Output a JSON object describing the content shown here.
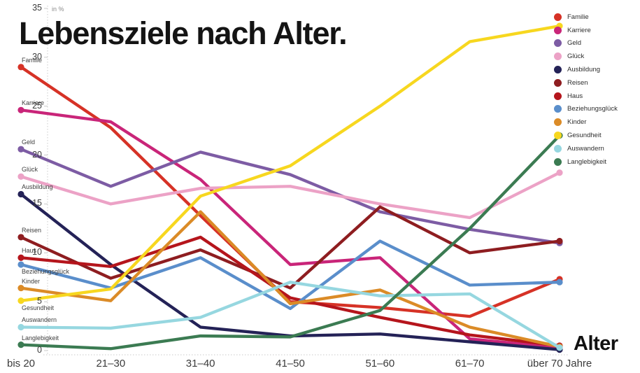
{
  "title": "Lebensziele nach Alter.",
  "axes": {
    "y_unit_label": "in %",
    "x_axis_title": "Alter"
  },
  "chart_data": {
    "type": "line",
    "title": "Lebensziele nach Alter.",
    "xlabel": "Alter",
    "ylabel": "in %",
    "ylim": [
      0,
      35
    ],
    "y_ticks": [
      0,
      5,
      10,
      15,
      20,
      25,
      30,
      35
    ],
    "grid": false,
    "legend_position": "top-right",
    "categories": [
      "bis 20",
      "21–30",
      "31–40",
      "41–50",
      "51–60",
      "61–70",
      "über 70 Jahre"
    ],
    "series": [
      {
        "name": "Familie",
        "color": "#d63226",
        "values": [
          29.0,
          22.8,
          13.8,
          5.0,
          4.4,
          3.5,
          7.3
        ]
      },
      {
        "name": "Karriere",
        "color": "#c92579",
        "values": [
          24.6,
          23.4,
          17.5,
          8.8,
          9.5,
          1.2,
          0.3
        ]
      },
      {
        "name": "Geld",
        "color": "#7d5ca4",
        "values": [
          20.6,
          16.8,
          20.3,
          18.0,
          14.2,
          12.4,
          11.0
        ]
      },
      {
        "name": "Glück",
        "color": "#eca2c6",
        "values": [
          17.8,
          15.0,
          16.6,
          16.8,
          15.0,
          13.6,
          18.2
        ]
      },
      {
        "name": "Ausbildung",
        "color": "#242257",
        "values": [
          16.0,
          8.8,
          2.4,
          1.5,
          1.7,
          0.9,
          0.1
        ]
      },
      {
        "name": "Reisen",
        "color": "#8e1d20",
        "values": [
          11.6,
          7.4,
          10.3,
          6.4,
          14.7,
          10.0,
          11.2
        ]
      },
      {
        "name": "Haus",
        "color": "#b5151c",
        "values": [
          9.5,
          8.6,
          11.6,
          5.4,
          3.4,
          1.6,
          0.5
        ]
      },
      {
        "name": "Beziehungsglück",
        "color": "#5a8ecb",
        "values": [
          8.8,
          6.4,
          9.5,
          4.3,
          11.2,
          6.7,
          7.0
        ]
      },
      {
        "name": "Kinder",
        "color": "#db8b27",
        "values": [
          6.4,
          5.1,
          14.2,
          4.8,
          6.2,
          2.4,
          0.4
        ]
      },
      {
        "name": "Gesundheit",
        "color": "#f7d71f",
        "values": [
          5.1,
          6.3,
          15.8,
          18.9,
          25.0,
          31.6,
          33.2
        ]
      },
      {
        "name": "Auswandern",
        "color": "#96d7e0",
        "values": [
          2.4,
          2.3,
          3.4,
          7.0,
          5.6,
          5.8,
          0.3
        ]
      },
      {
        "name": "Langlebigkeit",
        "color": "#3b7b52",
        "values": [
          0.6,
          0.2,
          1.5,
          1.4,
          4.1,
          12.5,
          22.0
        ]
      }
    ]
  }
}
